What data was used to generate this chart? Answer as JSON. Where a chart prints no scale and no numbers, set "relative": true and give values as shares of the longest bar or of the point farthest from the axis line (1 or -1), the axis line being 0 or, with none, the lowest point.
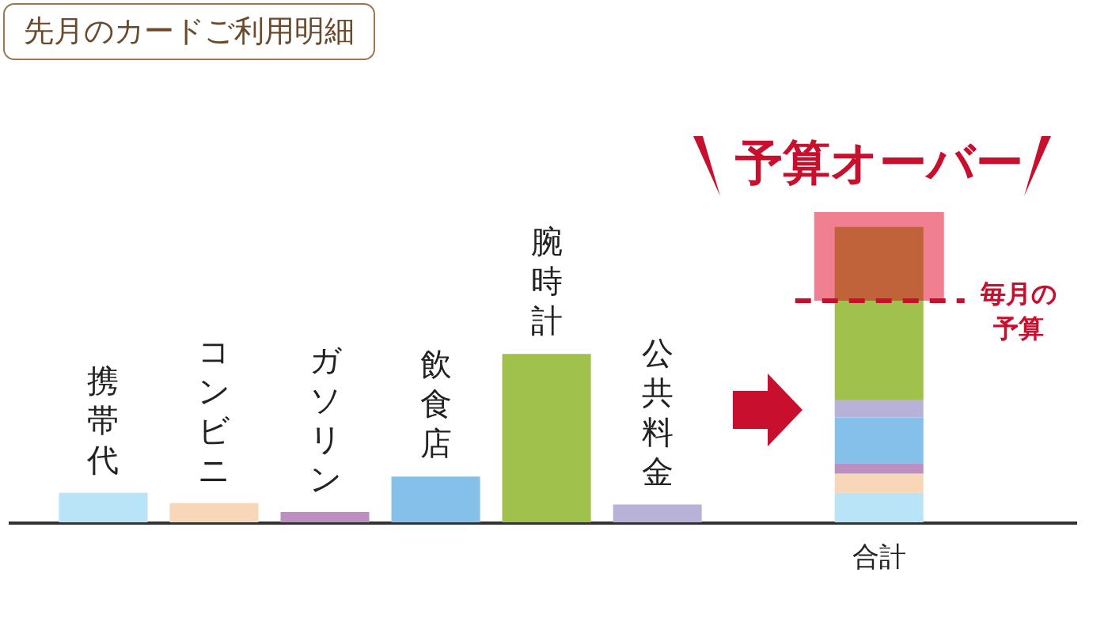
{
  "chart_data": {
    "type": "bar",
    "title": "先月のカードご利用明細",
    "relative": true,
    "stacked": true,
    "categories": [
      "携帯代",
      "コンビニ",
      "ガソリン",
      "飲食店",
      "腕時計",
      "公共料金",
      null,
      "合計"
    ],
    "series": [
      {
        "color": "#b9e3f7",
        "values": [
          0.1,
          null,
          null,
          null,
          null,
          null,
          null,
          0.1
        ]
      },
      {
        "color": "#f8d7b8",
        "values": [
          null,
          0.065,
          null,
          null,
          null,
          null,
          null,
          0.065
        ]
      },
      {
        "color": "#bd8fc0",
        "values": [
          null,
          null,
          0.035,
          null,
          null,
          null,
          null,
          0.035
        ]
      },
      {
        "color": "#85c0ea",
        "values": [
          null,
          null,
          null,
          0.155,
          null,
          null,
          null,
          0.155
        ]
      },
      {
        "color": "#b8b2d8",
        "values": [
          null,
          null,
          null,
          null,
          null,
          0.06,
          null,
          0.06
        ]
      },
      {
        "color": "#a0c24c",
        "values": [
          null,
          null,
          null,
          null,
          0.57,
          null,
          null,
          0.335
        ]
      },
      {
        "color": "#c0623a",
        "values": [
          null,
          null,
          null,
          null,
          null,
          null,
          null,
          0.25
        ]
      }
    ],
    "ref_lines": [
      {
        "axis": "y",
        "value": 0.75,
        "label": "毎月の予算",
        "color": "#c8102e",
        "line_style": "dashed"
      }
    ],
    "bands": [
      {
        "axis": "y",
        "from": 0.75,
        "to": 1.05,
        "color": "#f08090"
      }
    ],
    "annotations": [
      "予算オーバー"
    ]
  }
}
